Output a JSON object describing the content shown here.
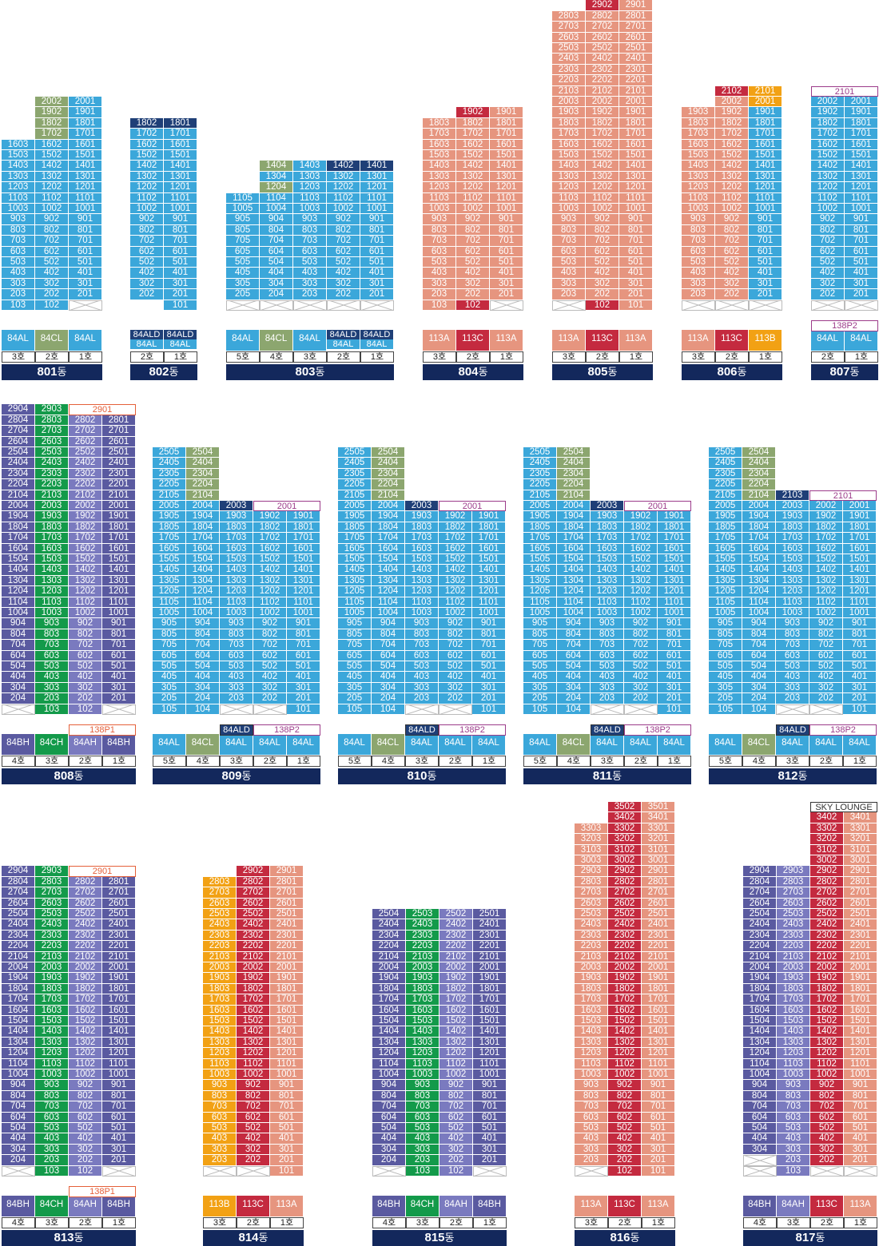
{
  "colors": {
    "84AL": "#3ba7da",
    "84CL": "#8ca66f",
    "84ALD": "#1f3f77",
    "113A": "#e6957f",
    "113C": "#c42a3f",
    "113B": "#f2a114",
    "84BH": "#5a5aa0",
    "84CH": "#139a4a",
    "84AH": "#7a7abf",
    "138P1": "#ffffff",
    "138P2": "#ffffff",
    "dong": "#13285c"
  },
  "buildings": [
    {
      "name": "801",
      "suffix": "동",
      "x": 0,
      "bottom": 376,
      "cols": [
        {
          "ho": "3호",
          "type": "84AL",
          "top": 16,
          "bottom": 1,
          "empty": []
        },
        {
          "ho": "2호",
          "type": "84CL",
          "top": 20,
          "bottom": 1,
          "empty": [],
          "typeOverride": {
            "top": "84AL"
          },
          "colorByFloor": "84CL-top"
        },
        {
          "ho": "1호",
          "type": "84AL",
          "top": 20,
          "bottom": 1,
          "empty": [
            1
          ]
        }
      ]
    },
    {
      "name": "802",
      "suffix": "동",
      "x": 162,
      "bottom": 376,
      "cols": [
        {
          "ho": "2호",
          "type": "84AL",
          "top": 18,
          "bottom": 2,
          "empty": [],
          "topType": "84ALD",
          "typeLabel": [
            "84ALD",
            "84AL"
          ]
        },
        {
          "ho": "1호",
          "type": "84AL",
          "top": 18,
          "bottom": 1,
          "empty": [],
          "topType": "84ALD",
          "typeLabel": [
            "84ALD",
            "84AL"
          ]
        }
      ]
    },
    {
      "name": "803",
      "suffix": "동",
      "x": 282,
      "bottom": 376,
      "cols": [
        {
          "ho": "5호",
          "type": "84AL",
          "top": 11,
          "bottom": 2,
          "empty": [
            1
          ]
        },
        {
          "ho": "4호",
          "type": "84CL",
          "top": 14,
          "bottom": 2,
          "empty": [
            1
          ]
        },
        {
          "ho": "3호",
          "type": "84AL",
          "top": 14,
          "bottom": 2,
          "empty": [
            1
          ]
        },
        {
          "ho": "2호",
          "type": "84AL",
          "top": 14,
          "bottom": 2,
          "empty": [
            1
          ],
          "topType": "84ALD",
          "typeLabel": [
            "84ALD",
            "84AL"
          ]
        },
        {
          "ho": "1호",
          "type": "84AL",
          "top": 14,
          "bottom": 2,
          "empty": [
            1
          ],
          "topType": "84ALD",
          "typeLabel": [
            "84ALD",
            "84AL"
          ]
        }
      ]
    },
    {
      "name": "804",
      "suffix": "동",
      "x": 528,
      "bottom": 376,
      "cols": [
        {
          "ho": "3호",
          "type": "113A",
          "top": 18,
          "bottom": 1,
          "empty": []
        },
        {
          "ho": "2호",
          "type": "113C",
          "top": 19,
          "bottom": 1,
          "empty": []
        },
        {
          "ho": "1호",
          "type": "113A",
          "top": 19,
          "bottom": 2,
          "empty": [
            1
          ]
        }
      ]
    },
    {
      "name": "805",
      "suffix": "동",
      "x": 690,
      "bottom": 376,
      "cols": [
        {
          "ho": "3호",
          "type": "113A",
          "top": 28,
          "bottom": 2,
          "empty": [
            1
          ]
        },
        {
          "ho": "2호",
          "type": "113C",
          "top": 29,
          "bottom": 1,
          "empty": []
        },
        {
          "ho": "1호",
          "type": "113A",
          "top": 29,
          "bottom": 1,
          "empty": []
        }
      ]
    },
    {
      "name": "806",
      "suffix": "동",
      "x": 852,
      "bottom": 376,
      "cols": [
        {
          "ho": "3호",
          "type": "113A",
          "top": 19,
          "bottom": 2,
          "empty": [
            1
          ]
        },
        {
          "ho": "2호",
          "type": "113C",
          "top": 21,
          "bottom": 2,
          "empty": [
            1
          ]
        },
        {
          "ho": "1호",
          "type": "113B",
          "top": 21,
          "bottom": 2,
          "empty": [
            1
          ]
        }
      ]
    },
    {
      "name": "807",
      "suffix": "동",
      "x": 1014,
      "bottom": 376,
      "cols": [
        {
          "ho": "2호",
          "type": "84AL",
          "top": 20,
          "bottom": 2,
          "empty": [
            1
          ]
        },
        {
          "ho": "1호",
          "type": "84AL",
          "top": 20,
          "bottom": 2,
          "empty": [
            1
          ]
        }
      ],
      "penthouse": {
        "label": "2101",
        "style": "p",
        "span": 2
      },
      "typeHeader": {
        "label": "138P2",
        "style": "p",
        "from": 0,
        "to": 2
      }
    }
  ],
  "units": {
    "801": [
      "103",
      "102",
      "2002",
      "2001",
      "1603",
      "1503"
    ],
    "807": [
      "2101"
    ]
  },
  "labels_row": {
    "801": [
      [
        "84AL"
      ],
      [
        "84CL"
      ],
      [
        "84AL"
      ]
    ],
    "802": [
      [
        "84ALD",
        "84AL"
      ],
      [
        "84ALD",
        "84AL"
      ]
    ],
    "803": [
      [
        "84AL"
      ],
      [
        "84CL"
      ],
      [
        "84AL"
      ],
      [
        "84ALD",
        "84AL"
      ],
      [
        "84ALD",
        "84AL"
      ]
    ],
    "804": [
      [
        "113A"
      ],
      [
        "113C"
      ],
      [
        "113A"
      ]
    ],
    "805": [
      [
        "113A"
      ],
      [
        "113C"
      ],
      [
        "113A"
      ]
    ],
    "806": [
      [
        "113A"
      ],
      [
        "113C"
      ],
      [
        "113B"
      ]
    ],
    "807": [
      [
        "84AL"
      ],
      [
        "84AL"
      ]
    ],
    "808": [
      [
        "84BH"
      ],
      [
        "84CH"
      ],
      [
        "84AH"
      ],
      [
        "84BH"
      ]
    ],
    "809": [
      [
        "84AL"
      ],
      [
        "84CL"
      ],
      [
        "84AL"
      ],
      [
        "84AL"
      ],
      [
        "84AL"
      ]
    ],
    "810": [
      [
        "84AL"
      ],
      [
        "84CL"
      ],
      [
        "84AL"
      ],
      [
        "84AL"
      ],
      [
        "84AL"
      ]
    ],
    "811": [
      [
        "84AL"
      ],
      [
        "84CL"
      ],
      [
        "84AL"
      ],
      [
        "84AL"
      ],
      [
        "84AL"
      ]
    ],
    "812": [
      [
        "84AL"
      ],
      [
        "84CL"
      ],
      [
        "84AL"
      ],
      [
        "84AL"
      ],
      [
        "84AL"
      ]
    ],
    "813": [
      [
        "84BH"
      ],
      [
        "84CH"
      ],
      [
        "84AH"
      ],
      [
        "84BH"
      ]
    ],
    "814": [
      [
        "113B"
      ],
      [
        "113C"
      ],
      [
        "113A"
      ]
    ],
    "815": [
      [
        "84BH"
      ],
      [
        "84CH"
      ],
      [
        "84AH"
      ],
      [
        "84BH"
      ]
    ],
    "816": [
      [
        "113A"
      ],
      [
        "113C"
      ],
      [
        "113A"
      ]
    ],
    "817": [
      [
        "84BH"
      ],
      [
        "84AH"
      ],
      [
        "113C"
      ],
      [
        "113A"
      ]
    ]
  },
  "headers": {
    "807": "138P2",
    "808": "138P1",
    "809": "138P2",
    "810": "138P2",
    "811": "138P2",
    "812": "138P2",
    "813": "138P1",
    "809_ald": "84ALD",
    "810_ald": "84ALD",
    "811_ald": "84ALD",
    "812_ald": "84ALD"
  },
  "ho_labels": {
    "h1": "1호",
    "h2": "2호",
    "h3": "3호",
    "h4": "4호",
    "h5": "5호"
  },
  "dong_labels": [
    "801",
    "802",
    "803",
    "804",
    "805",
    "806",
    "807",
    "808",
    "809",
    "810",
    "811",
    "812",
    "813",
    "814",
    "815",
    "816",
    "817"
  ],
  "dong_suffix": "동",
  "special": {
    "sky_lounge": "SKY LOUNGE",
    "penthouse_807": "2101",
    "penthouse_808": "2901",
    "penthouse_813": "2901",
    "penthouse_809": "2001",
    "penthouse_810": "2001",
    "penthouse_811": "2001",
    "penthouse_812": "2101"
  }
}
